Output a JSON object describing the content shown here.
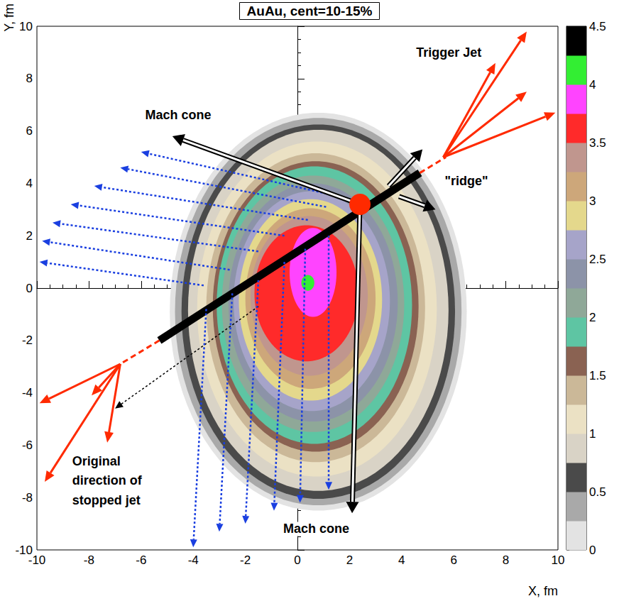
{
  "chart_data": {
    "type": "contour",
    "title": "AuAu, cent=10-15%",
    "x_label": "X, fm",
    "y_label": "Y, fm",
    "xlim": [
      -10,
      10
    ],
    "xticks": [
      -10,
      -8,
      -6,
      -4,
      -2,
      0,
      2,
      4,
      6,
      8,
      10
    ],
    "ylim": [
      -10,
      10
    ],
    "yticks": [
      -10,
      -8,
      -6,
      -4,
      -2,
      0,
      2,
      4,
      6,
      8,
      10
    ],
    "grid": false,
    "colorbar": {
      "range": [
        0,
        4.5
      ],
      "ticks": [
        0,
        0.5,
        1,
        1.5,
        2,
        2.5,
        3,
        3.5,
        4,
        4.5
      ],
      "colors": [
        "#e3e3e3",
        "#a9a9a9",
        "#4a4a4a",
        "#d9d3c6",
        "#ebe1c4",
        "#cbb898",
        "#8a6252",
        "#5ec5a3",
        "#8fa898",
        "#8c93a8",
        "#a6a4c9",
        "#e4d88c",
        "#cda77a",
        "#c0968e",
        "#ff2a2a",
        "#ff44ff",
        "#33ee33",
        "#000000"
      ]
    },
    "contours": [
      {
        "level": 0,
        "center": [
          0.8,
          -0.9
        ],
        "radii": [
          5.7,
          7.6
        ]
      },
      {
        "level": 0.25,
        "center": [
          0.8,
          -0.9
        ],
        "radii": [
          5.5,
          7.4
        ]
      },
      {
        "level": 0.5,
        "center": [
          0.8,
          -0.9
        ],
        "radii": [
          5.25,
          7.15
        ]
      },
      {
        "level": 0.75,
        "center": [
          0.8,
          -0.85
        ],
        "radii": [
          5.0,
          6.9
        ]
      },
      {
        "level": 1,
        "center": [
          0.75,
          -0.8
        ],
        "radii": [
          4.6,
          6.4
        ]
      },
      {
        "level": 1.25,
        "center": [
          0.7,
          -0.75
        ],
        "radii": [
          4.2,
          5.9
        ]
      },
      {
        "level": 1.5,
        "center": [
          0.7,
          -0.7
        ],
        "radii": [
          3.95,
          5.55
        ]
      },
      {
        "level": 1.75,
        "center": [
          0.65,
          -0.65
        ],
        "radii": [
          3.75,
          5.3
        ]
      },
      {
        "level": 2,
        "center": [
          0.6,
          -0.6
        ],
        "radii": [
          3.5,
          4.9
        ]
      },
      {
        "level": 2.25,
        "center": [
          0.6,
          -0.55
        ],
        "radii": [
          3.25,
          4.55
        ]
      },
      {
        "level": 2.5,
        "center": [
          0.55,
          -0.5
        ],
        "radii": [
          3.0,
          4.2
        ]
      },
      {
        "level": 2.75,
        "center": [
          0.5,
          -0.45
        ],
        "radii": [
          2.75,
          3.85
        ]
      },
      {
        "level": 3,
        "center": [
          0.5,
          -0.4
        ],
        "radii": [
          2.5,
          3.45
        ]
      },
      {
        "level": 3.25,
        "center": [
          0.45,
          -0.3
        ],
        "radii": [
          2.25,
          3.05
        ]
      },
      {
        "level": 3.5,
        "center": [
          0.35,
          -0.2
        ],
        "radii": [
          2.0,
          2.6
        ]
      },
      {
        "level": 3.75,
        "center": [
          0.6,
          0.6
        ],
        "radii": [
          0.9,
          1.7
        ]
      },
      {
        "level": 4,
        "center": [
          0.4,
          0.2
        ],
        "radii": [
          0.25,
          0.3
        ]
      }
    ],
    "overlays": [
      {
        "type": "band",
        "color": "#000000",
        "line_style": "solid",
        "segments": [
          [
            -5.3,
            -2.0,
            4.7,
            4.4
          ]
        ]
      },
      {
        "type": "line",
        "color": "#ff2a00",
        "line_style": "dashed",
        "segments": [
          [
            4.7,
            4.4,
            5.7,
            5.0
          ],
          [
            -5.3,
            -2.0,
            -6.8,
            -2.9
          ]
        ]
      },
      {
        "type": "arrow",
        "color": "#000000",
        "line_style": "dotted",
        "segments": [
          [
            -1.5,
            -0.7,
            -7.0,
            -4.6
          ]
        ]
      },
      {
        "type": "arrow",
        "color": "#ff2a00",
        "line_style": "solid",
        "segments": [
          [
            5.6,
            5.0,
            8.8,
            9.8
          ],
          [
            5.6,
            5.0,
            7.6,
            8.6
          ],
          [
            5.6,
            5.0,
            8.8,
            7.5
          ],
          [
            5.6,
            5.0,
            9.9,
            6.7
          ],
          [
            -6.8,
            -2.9,
            -9.9,
            -4.4
          ],
          [
            -6.8,
            -2.9,
            -7.9,
            -4.1
          ],
          [
            -6.8,
            -2.9,
            -7.3,
            -5.9
          ],
          [
            -6.8,
            -2.9,
            -9.7,
            -7.4
          ]
        ]
      },
      {
        "type": "arrow",
        "color": "#1a3fe0",
        "line_style": "dotted",
        "segments": [
          [
            1.6,
            3.5,
            -6.0,
            5.2
          ],
          [
            1.1,
            3.1,
            -6.8,
            4.6
          ],
          [
            0.4,
            2.6,
            -7.8,
            3.9
          ],
          [
            -0.5,
            2.0,
            -8.7,
            3.2
          ],
          [
            -1.5,
            1.4,
            -9.4,
            2.5
          ],
          [
            -2.6,
            0.7,
            -9.8,
            1.8
          ],
          [
            -3.6,
            0.1,
            -9.9,
            1.0
          ],
          [
            -3.5,
            -0.8,
            -4.0,
            -9.9
          ],
          [
            -2.5,
            -0.2,
            -3.0,
            -9.3
          ],
          [
            -1.5,
            0.3,
            -2.0,
            -9.0
          ],
          [
            -0.5,
            1.0,
            -0.9,
            -8.5
          ],
          [
            0.3,
            1.5,
            0.1,
            -8.2
          ],
          [
            1.2,
            2.0,
            1.2,
            -7.7
          ]
        ]
      },
      {
        "type": "hollow_arrow",
        "color": "#000000",
        "line_style": "solid",
        "segments": [
          [
            2.4,
            3.2,
            -4.8,
            5.8
          ],
          [
            2.4,
            3.2,
            2.1,
            -8.6
          ],
          [
            3.5,
            3.9,
            4.8,
            5.3
          ],
          [
            3.9,
            3.5,
            5.3,
            3.0
          ]
        ]
      },
      {
        "type": "point",
        "color": "#ff2a00",
        "marker": "circle",
        "points": [
          [
            2.4,
            3.2
          ]
        ]
      }
    ],
    "annotations": [
      {
        "text": "Trigger Jet",
        "x": 4.5,
        "y": 9.0
      },
      {
        "text": "Mach cone",
        "x": -5.9,
        "y": 6.6
      },
      {
        "text": "\"ridge\"",
        "x": 5.6,
        "y": 4.1
      },
      {
        "text": "Original",
        "x": -8.7,
        "y": -6.6
      },
      {
        "text": "direction of",
        "x": -8.7,
        "y": -7.35
      },
      {
        "text": "stopped jet",
        "x": -8.7,
        "y": -8.1
      },
      {
        "text": "Mach cone",
        "x": -0.6,
        "y": -9.2
      }
    ]
  }
}
